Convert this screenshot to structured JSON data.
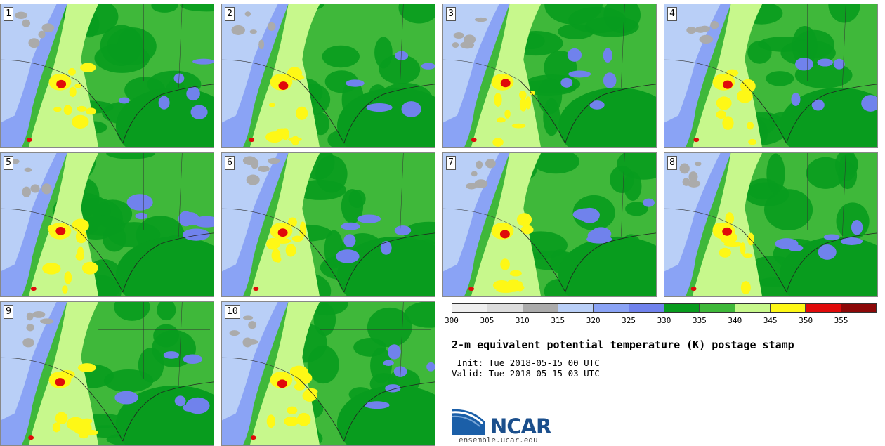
{
  "panels": [
    {
      "number": "1"
    },
    {
      "number": "2"
    },
    {
      "number": "3"
    },
    {
      "number": "4"
    },
    {
      "number": "5"
    },
    {
      "number": "6"
    },
    {
      "number": "7"
    },
    {
      "number": "8"
    },
    {
      "number": "9"
    },
    {
      "number": "10"
    }
  ],
  "colorbar": {
    "colors": [
      "#efefef",
      "#dcdcdc",
      "#ababab",
      "#b9cff7",
      "#8aa3f5",
      "#7082ec",
      "#089c1e",
      "#3fb83a",
      "#c7f88c",
      "#fef816",
      "#e00a0a",
      "#8c0808"
    ],
    "labels": [
      "300",
      "305",
      "310",
      "315",
      "320",
      "325",
      "330",
      "335",
      "340",
      "345",
      "350",
      "355"
    ]
  },
  "title": "2-m equivalent potential temperature (K) postage stamp",
  "init": " Init: Tue 2018-05-15 00 UTC",
  "valid": "Valid: Tue 2018-05-15 03 UTC",
  "logo": {
    "text": "NCAR",
    "site": "ensemble.ucar.edu"
  }
}
